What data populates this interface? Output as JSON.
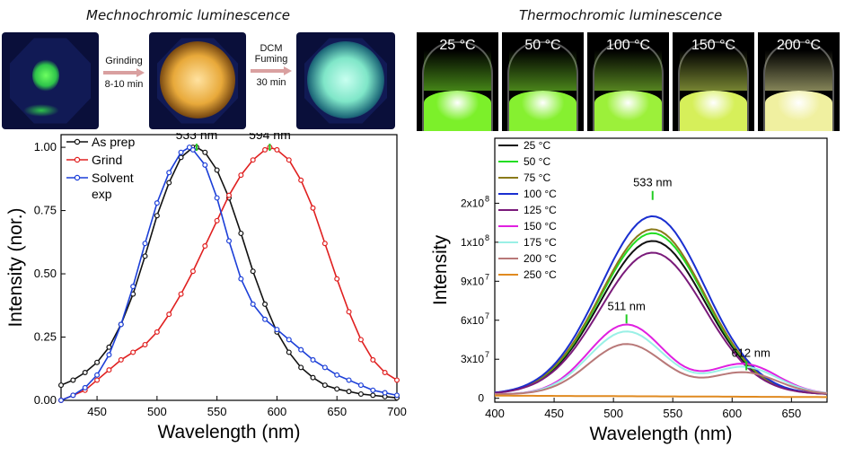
{
  "left_title": "Mechnochromic luminescence",
  "right_title": "Thermochromic luminescence",
  "arrows": {
    "grinding_label": "Grinding",
    "grinding_time": "8-10 min",
    "fuming_label1": "DCM",
    "fuming_label2": "Fuming",
    "fuming_time": "30 min"
  },
  "photos": [
    {
      "state": "as prepared",
      "color": "#2ec44a"
    },
    {
      "state": "ground",
      "color": "#e8a93a"
    },
    {
      "state": "fumed",
      "color": "#7fe6c8"
    }
  ],
  "vials": [
    {
      "label": "25 °C",
      "color": "#7cf02a"
    },
    {
      "label": "50 °C",
      "color": "#86f030"
    },
    {
      "label": "100 °C",
      "color": "#9cf03a"
    },
    {
      "label": "150 °C",
      "color": "#d6ef5a"
    },
    {
      "label": "200 °C",
      "color": "#f0f0a0"
    }
  ],
  "chart_data": [
    {
      "type": "line",
      "title": "",
      "xlabel": "Wavelength (nm)",
      "ylabel": "Intensity (nor.)",
      "xlim": [
        420,
        700
      ],
      "ylim": [
        0,
        1.05
      ],
      "xticks": [
        450,
        500,
        550,
        600,
        650,
        700
      ],
      "yticks": [
        "0.00",
        "0.25",
        "0.50",
        "0.75",
        "1.00"
      ],
      "ytick_values": [
        0,
        0.25,
        0.5,
        0.75,
        1.0
      ],
      "legend": "top-left",
      "annotations": [
        {
          "text": "533 nm",
          "x": 533,
          "y": 1.0
        },
        {
          "text": "594 nm",
          "x": 594,
          "y": 1.0
        }
      ],
      "series": [
        {
          "name": "As prep",
          "color": "#111111",
          "x": [
            420,
            430,
            440,
            450,
            460,
            470,
            480,
            490,
            500,
            510,
            520,
            530,
            533,
            540,
            550,
            560,
            570,
            580,
            590,
            600,
            610,
            620,
            630,
            640,
            650,
            660,
            670,
            680,
            690,
            700
          ],
          "y": [
            0.06,
            0.08,
            0.11,
            0.15,
            0.21,
            0.3,
            0.42,
            0.57,
            0.73,
            0.86,
            0.96,
            1.0,
            1.0,
            0.98,
            0.91,
            0.8,
            0.66,
            0.51,
            0.38,
            0.27,
            0.19,
            0.13,
            0.09,
            0.06,
            0.045,
            0.035,
            0.025,
            0.02,
            0.015,
            0.01
          ]
        },
        {
          "name": "Grind",
          "color": "#e02020",
          "x": [
            420,
            430,
            440,
            450,
            460,
            470,
            480,
            490,
            500,
            510,
            520,
            530,
            540,
            550,
            560,
            570,
            580,
            590,
            594,
            600,
            610,
            620,
            630,
            640,
            650,
            660,
            670,
            680,
            690,
            700
          ],
          "y": [
            0.0,
            0.02,
            0.04,
            0.08,
            0.12,
            0.16,
            0.19,
            0.22,
            0.27,
            0.34,
            0.42,
            0.51,
            0.61,
            0.71,
            0.81,
            0.89,
            0.95,
            0.99,
            1.0,
            0.99,
            0.95,
            0.87,
            0.76,
            0.62,
            0.48,
            0.35,
            0.24,
            0.16,
            0.11,
            0.08
          ]
        },
        {
          "name": "Solvent exp",
          "color": "#1c3fd8",
          "x": [
            420,
            430,
            440,
            450,
            460,
            470,
            480,
            490,
            500,
            510,
            520,
            527,
            530,
            540,
            550,
            560,
            570,
            580,
            590,
            600,
            610,
            620,
            630,
            640,
            650,
            660,
            670,
            680,
            690,
            700
          ],
          "y": [
            0.0,
            0.02,
            0.05,
            0.1,
            0.18,
            0.3,
            0.45,
            0.62,
            0.78,
            0.9,
            0.98,
            1.0,
            0.99,
            0.93,
            0.8,
            0.63,
            0.48,
            0.38,
            0.32,
            0.28,
            0.24,
            0.2,
            0.16,
            0.13,
            0.1,
            0.08,
            0.06,
            0.04,
            0.03,
            0.02
          ]
        }
      ]
    },
    {
      "type": "line",
      "title": "",
      "xlabel": "Wavelength (nm)",
      "ylabel": "Intensity",
      "xlim": [
        400,
        680
      ],
      "ylim": [
        -3000000,
        200000000
      ],
      "xticks": [
        400,
        450,
        500,
        550,
        600,
        650
      ],
      "yticks_labels": [
        {
          "base": "0",
          "exp": ""
        },
        {
          "base": "3x10",
          "exp": "7"
        },
        {
          "base": "6x10",
          "exp": "7"
        },
        {
          "base": "9x10",
          "exp": "7"
        },
        {
          "base": "1x10",
          "exp": "8"
        },
        {
          "base": "2x10",
          "exp": "8"
        }
      ],
      "ytick_values": [
        0,
        30000000,
        60000000,
        90000000,
        120000000,
        150000000
      ],
      "legend": "top-left",
      "annotations": [
        {
          "text": "533 nm",
          "x": 533,
          "y": 156000000
        },
        {
          "text": "511 nm",
          "x": 511,
          "y": 61000000
        },
        {
          "text": "612 nm",
          "x": 612,
          "y": 25000000
        }
      ],
      "series": [
        {
          "name": "25 °C",
          "color": "#111111",
          "peak": 118000000,
          "center": 533
        },
        {
          "name": "50 °C",
          "color": "#22dd22",
          "peak": 124000000,
          "center": 533
        },
        {
          "name": "75 °C",
          "color": "#8a7a1a",
          "peak": 127000000,
          "center": 533
        },
        {
          "name": "100 °C",
          "color": "#1a2fd0",
          "peak": 137000000,
          "center": 533
        },
        {
          "name": "125 °C",
          "color": "#7a1a7a",
          "peak": 109000000,
          "center": 533
        },
        {
          "name": "150 °C",
          "color": "#e020e0",
          "peak": 61000000,
          "center": 511
        },
        {
          "name": "175 °C",
          "color": "#9af0e6",
          "peak": 55000000,
          "center": 511
        },
        {
          "name": "200 °C",
          "color": "#b87878",
          "peak": 44000000,
          "center": 511
        },
        {
          "name": "250 °C",
          "color": "#e08a20",
          "peak": 2000000,
          "center": 500
        }
      ]
    }
  ]
}
